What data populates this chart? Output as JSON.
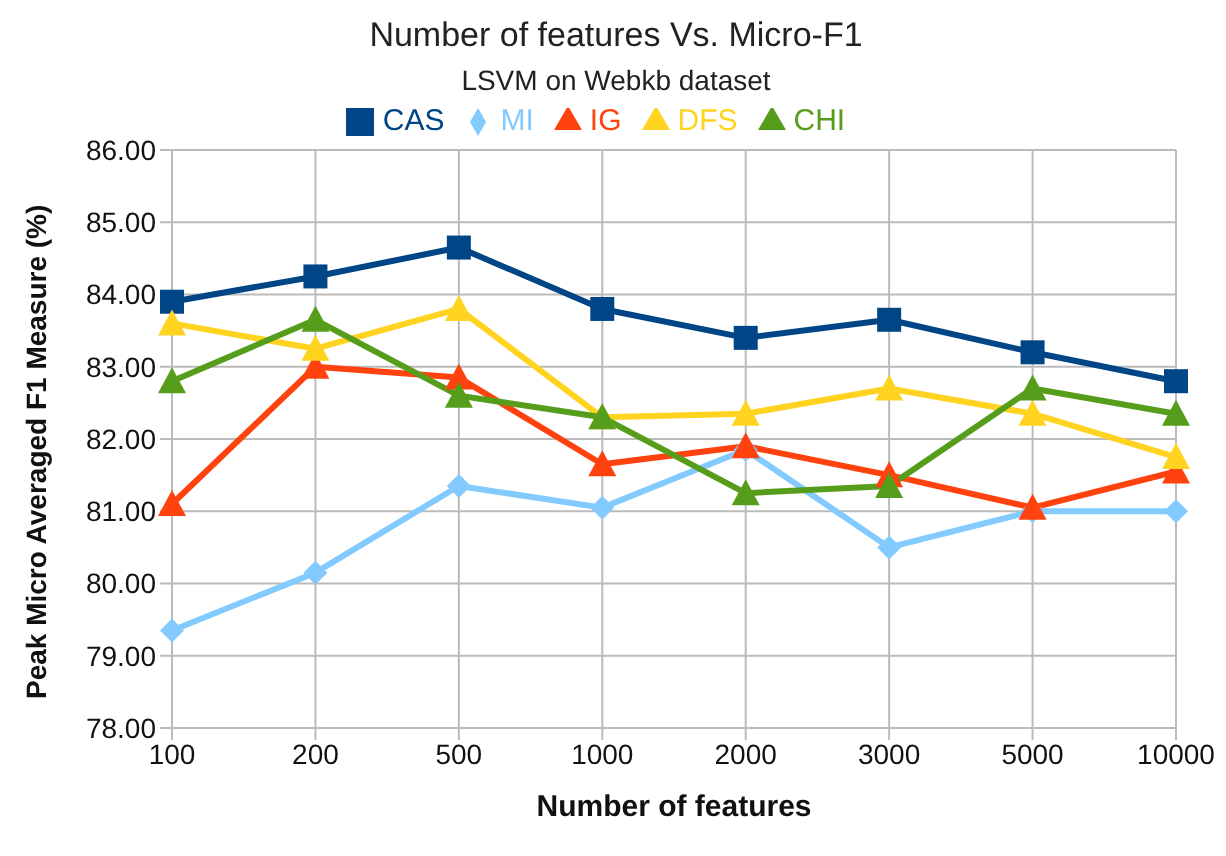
{
  "chart_data": {
    "type": "line",
    "title": "Number of features Vs. Micro-F1",
    "subtitle": "LSVM on Webkb dataset",
    "xlabel": "Number of features",
    "ylabel": "Peak Micro Averaged F1 Measure (%)",
    "categories": [
      "100",
      "200",
      "500",
      "1000",
      "2000",
      "3000",
      "5000",
      "10000"
    ],
    "series": [
      {
        "name": "CAS",
        "color": "#004586",
        "marker": "square",
        "values": [
          83.9,
          84.25,
          84.65,
          83.8,
          83.4,
          83.65,
          83.2,
          82.8
        ]
      },
      {
        "name": "MI",
        "color": "#83caff",
        "marker": "diamond",
        "values": [
          79.35,
          80.15,
          81.35,
          81.05,
          81.85,
          80.5,
          81.0,
          81.0
        ]
      },
      {
        "name": "IG",
        "color": "#ff420e",
        "marker": "triangle",
        "values": [
          81.1,
          83.0,
          82.85,
          81.65,
          81.9,
          81.5,
          81.05,
          81.55
        ]
      },
      {
        "name": "DFS",
        "color": "#ffd320",
        "marker": "triangle",
        "values": [
          83.6,
          83.25,
          83.8,
          82.3,
          82.35,
          82.7,
          82.35,
          81.75
        ]
      },
      {
        "name": "CHI",
        "color": "#579d1c",
        "marker": "triangle",
        "values": [
          82.8,
          83.65,
          82.6,
          82.3,
          81.25,
          81.35,
          82.7,
          82.35
        ]
      }
    ],
    "ylim": [
      78,
      86
    ],
    "yticks": [
      {
        "value": 78,
        "label": "78.00"
      },
      {
        "value": 79,
        "label": "79.00"
      },
      {
        "value": 80,
        "label": "80.00"
      },
      {
        "value": 81,
        "label": "81.00"
      },
      {
        "value": 82,
        "label": "82.00"
      },
      {
        "value": 83,
        "label": "83.00"
      },
      {
        "value": 84,
        "label": "84.00"
      },
      {
        "value": 85,
        "label": "85.00"
      },
      {
        "value": 86,
        "label": "86.00"
      }
    ],
    "grid": true,
    "legend": "top",
    "line_style": "solid"
  }
}
